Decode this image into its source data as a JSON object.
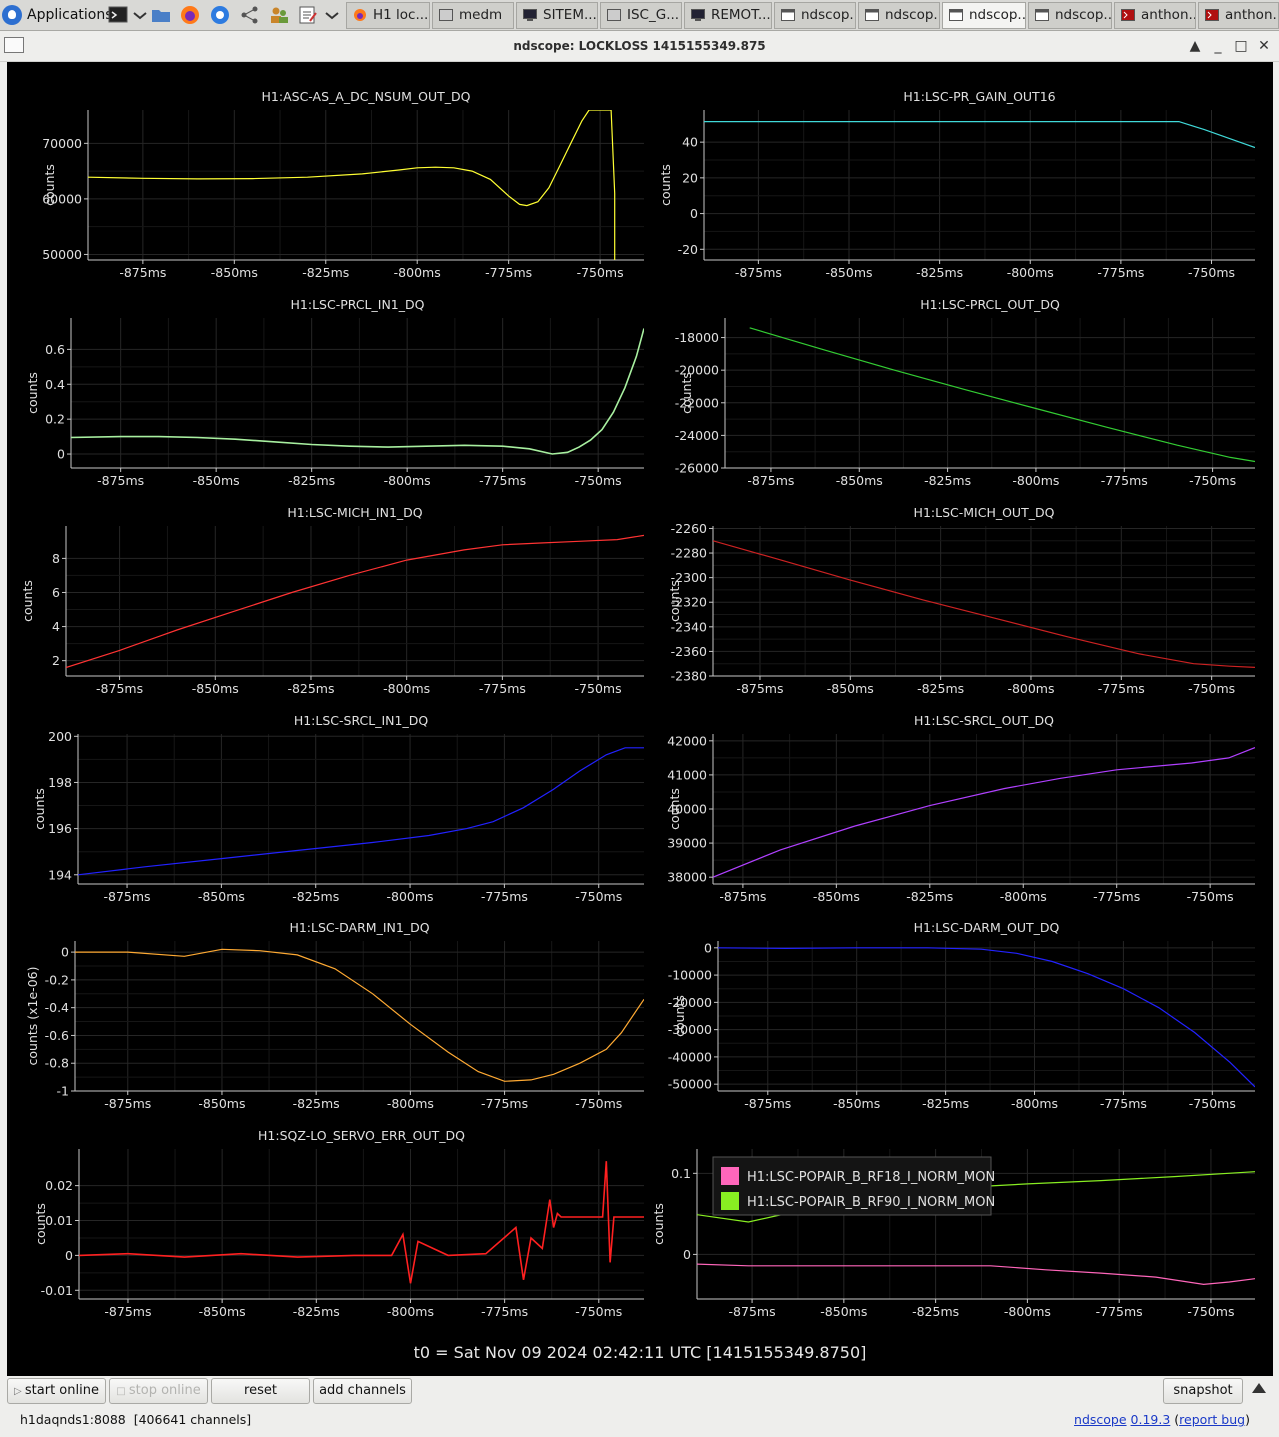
{
  "taskbar": {
    "applications_label": "Applications",
    "tabs": [
      {
        "label": "H1 loc...",
        "icon": "firefox-icon"
      },
      {
        "label": "medm",
        "icon": "window-icon"
      },
      {
        "label": "SITEM...",
        "icon": "monitor-icon"
      },
      {
        "label": "ISC_G...",
        "icon": "window-icon"
      },
      {
        "label": "REMOT...",
        "icon": "monitor-icon"
      },
      {
        "label": "ndscop...",
        "icon": "window-icon"
      },
      {
        "label": "ndscop...",
        "icon": "window-icon"
      },
      {
        "label": "ndscop...",
        "icon": "window-icon"
      },
      {
        "label": "ndscop...",
        "icon": "window-icon"
      },
      {
        "label": "anthon...",
        "icon": "terminal-icon"
      },
      {
        "label": "anthon...",
        "icon": "terminal-icon"
      }
    ]
  },
  "window": {
    "title": "ndscope: LOCKLOSS 1415155349.875",
    "controls": {
      "collapse": "▲",
      "minimize": "_",
      "maximize": "□",
      "close": "✕"
    }
  },
  "colors": {
    "background": "#000000",
    "grid": "#262626",
    "axis": "#c8c8c8",
    "text": "#e0e0e0"
  },
  "chart_data": [
    {
      "type": "line",
      "title": "H1:ASC-AS_A_DC_NSUM_OUT_DQ",
      "ylabel": "counts",
      "color": "#ffff33",
      "xlim": [
        -890,
        -738
      ],
      "ylim": [
        49000,
        76000
      ],
      "yticks": [
        50000,
        60000,
        70000
      ],
      "ytick_labels": [
        "50000",
        "60000",
        "70000"
      ],
      "xticks": [
        -875,
        -850,
        -825,
        -800,
        -775,
        -750
      ],
      "xtick_labels": [
        "-875ms",
        "-850ms",
        "-825ms",
        "-800ms",
        "-775ms",
        "-750ms"
      ],
      "x": [
        -890,
        -875,
        -860,
        -845,
        -830,
        -815,
        -805,
        -800,
        -795,
        -790,
        -785,
        -780,
        -775,
        -772,
        -770,
        -767,
        -764,
        -761,
        -758,
        -755,
        -753,
        -752,
        -751,
        -751,
        -748,
        -747,
        -746,
        -746
      ],
      "y": [
        63900,
        63700,
        63600,
        63650,
        63900,
        64500,
        65200,
        65600,
        65700,
        65600,
        65000,
        63500,
        60500,
        59000,
        58800,
        59500,
        62000,
        66000,
        70000,
        74000,
        76000,
        76000,
        76000,
        76000,
        76000,
        76000,
        61000,
        49000
      ]
    },
    {
      "type": "line",
      "title": "H1:LSC-PR_GAIN_OUT16",
      "ylabel": "counts",
      "color": "#40d9d9",
      "xlim": [
        -890,
        -738
      ],
      "ylim": [
        -26,
        58
      ],
      "yticks": [
        -20,
        0,
        20,
        40
      ],
      "ytick_labels": [
        "-20",
        "0",
        "20",
        "40"
      ],
      "xticks": [
        -875,
        -850,
        -825,
        -800,
        -775,
        -750
      ],
      "xtick_labels": [
        "-875ms",
        "-850ms",
        "-825ms",
        "-800ms",
        "-775ms",
        "-750ms"
      ],
      "x": [
        -890,
        -870,
        -850,
        -830,
        -810,
        -790,
        -770,
        -759,
        -752,
        -745,
        -738
      ],
      "y": [
        51.5,
        51.5,
        51.5,
        51.5,
        51.5,
        51.5,
        51.5,
        51.5,
        47,
        42,
        37
      ]
    },
    {
      "type": "line",
      "title": "H1:LSC-PRCL_IN1_DQ",
      "ylabel": "counts",
      "color": "#a8f0a0",
      "xlim": [
        -888,
        -738
      ],
      "ylim": [
        -0.08,
        0.78
      ],
      "yticks": [
        0,
        0.2,
        0.4,
        0.6
      ],
      "ytick_labels": [
        "0",
        "0.2",
        "0.4",
        "0.6"
      ],
      "xticks": [
        -875,
        -850,
        -825,
        -800,
        -775,
        -750
      ],
      "xtick_labels": [
        "-875ms",
        "-850ms",
        "-825ms",
        "-800ms",
        "-775ms",
        "-750ms"
      ],
      "x": [
        -888,
        -875,
        -865,
        -855,
        -845,
        -835,
        -825,
        -815,
        -805,
        -795,
        -785,
        -775,
        -768,
        -762,
        -758,
        -755,
        -752,
        -749,
        -746,
        -743,
        -740,
        -738
      ],
      "y": [
        0.095,
        0.1,
        0.1,
        0.095,
        0.085,
        0.07,
        0.055,
        0.045,
        0.04,
        0.045,
        0.05,
        0.045,
        0.03,
        0.0,
        0.01,
        0.04,
        0.08,
        0.14,
        0.24,
        0.38,
        0.56,
        0.72
      ]
    },
    {
      "type": "line",
      "title": "H1:LSC-PRCL_OUT_DQ",
      "ylabel": "counts",
      "color": "#33cc33",
      "xlim": [
        -888,
        -738
      ],
      "ylim": [
        -26000,
        -16800
      ],
      "yticks": [
        -26000,
        -24000,
        -22000,
        -20000,
        -18000
      ],
      "ytick_labels": [
        "-26000",
        "-24000",
        "-22000",
        "-20000",
        "-18000"
      ],
      "xticks": [
        -875,
        -850,
        -825,
        -800,
        -775,
        -750
      ],
      "xtick_labels": [
        "-875ms",
        "-850ms",
        "-825ms",
        "-800ms",
        "-775ms",
        "-750ms"
      ],
      "x": [
        -881,
        -860,
        -840,
        -820,
        -800,
        -780,
        -760,
        -745,
        -738
      ],
      "y": [
        -17400,
        -18750,
        -20000,
        -21200,
        -22350,
        -23500,
        -24600,
        -25350,
        -25600
      ]
    },
    {
      "type": "line",
      "title": "H1:LSC-MICH_IN1_DQ",
      "ylabel": "counts",
      "color": "#ff3333",
      "xlim": [
        -889,
        -738
      ],
      "ylim": [
        1.1,
        9.9
      ],
      "yticks": [
        2,
        4,
        6,
        8
      ],
      "ytick_labels": [
        "2",
        "4",
        "6",
        "8"
      ],
      "xticks": [
        -875,
        -850,
        -825,
        -800,
        -775,
        -750
      ],
      "xtick_labels": [
        "-875ms",
        "-850ms",
        "-825ms",
        "-800ms",
        "-775ms",
        "-750ms"
      ],
      "x": [
        -889,
        -875,
        -860,
        -845,
        -830,
        -815,
        -800,
        -785,
        -775,
        -765,
        -755,
        -745,
        -738
      ],
      "y": [
        1.6,
        2.6,
        3.8,
        4.9,
        6.0,
        7.0,
        7.9,
        8.5,
        8.8,
        8.9,
        9.0,
        9.1,
        9.35
      ]
    },
    {
      "type": "line",
      "title": "H1:LSC-MICH_OUT_DQ",
      "ylabel": "counts",
      "color": "#cc2222",
      "xlim": [
        -888,
        -738
      ],
      "ylim": [
        -2380,
        -2258
      ],
      "yticks": [
        -2380,
        -2360,
        -2340,
        -2320,
        -2300,
        -2280,
        -2260
      ],
      "ytick_labels": [
        "-2380",
        "-2360",
        "-2340",
        "-2320",
        "-2300",
        "-2280",
        "-2260"
      ],
      "xticks": [
        -875,
        -850,
        -825,
        -800,
        -775,
        -750
      ],
      "xtick_labels": [
        "-875ms",
        "-850ms",
        "-825ms",
        "-800ms",
        "-775ms",
        "-750ms"
      ],
      "x": [
        -888,
        -870,
        -850,
        -830,
        -810,
        -790,
        -770,
        -755,
        -745,
        -738
      ],
      "y": [
        -2270,
        -2285,
        -2302,
        -2318,
        -2333,
        -2348,
        -2362,
        -2370,
        -2372,
        -2373
      ]
    },
    {
      "type": "line",
      "title": "H1:LSC-SRCL_IN1_DQ",
      "ylabel": "counts",
      "color": "#2222ff",
      "xlim": [
        -888,
        -738
      ],
      "ylim": [
        193.6,
        200.1
      ],
      "yticks": [
        194,
        196,
        198,
        200
      ],
      "ytick_labels": [
        "194",
        "196",
        "198",
        "200"
      ],
      "xticks": [
        -875,
        -850,
        -825,
        -800,
        -775,
        -750
      ],
      "xtick_labels": [
        "-875ms",
        "-850ms",
        "-825ms",
        "-800ms",
        "-775ms",
        "-750ms"
      ],
      "x": [
        -888,
        -870,
        -850,
        -830,
        -810,
        -795,
        -785,
        -778,
        -770,
        -762,
        -755,
        -748,
        -743,
        -738
      ],
      "y": [
        194.0,
        194.35,
        194.7,
        195.05,
        195.4,
        195.7,
        196.0,
        196.3,
        196.9,
        197.7,
        198.5,
        199.2,
        199.5,
        199.5
      ]
    },
    {
      "type": "line",
      "title": "H1:LSC-SRCL_OUT_DQ",
      "ylabel": "counts",
      "color": "#b040ff",
      "xlim": [
        -883,
        -738
      ],
      "ylim": [
        37800,
        42200
      ],
      "yticks": [
        38000,
        39000,
        40000,
        41000,
        42000
      ],
      "ytick_labels": [
        "38000",
        "39000",
        "40000",
        "41000",
        "42000"
      ],
      "xticks": [
        -875,
        -850,
        -825,
        -800,
        -775,
        -750
      ],
      "xtick_labels": [
        "-875ms",
        "-850ms",
        "-825ms",
        "-800ms",
        "-775ms",
        "-750ms"
      ],
      "x": [
        -883,
        -865,
        -845,
        -825,
        -805,
        -790,
        -775,
        -765,
        -755,
        -745,
        -738
      ],
      "y": [
        38000,
        38800,
        39500,
        40100,
        40600,
        40900,
        41150,
        41250,
        41350,
        41500,
        41800
      ]
    },
    {
      "type": "line",
      "title": "H1:LSC-DARM_IN1_DQ",
      "ylabel": "counts (x1e-06)",
      "color": "#ffaa33",
      "xlim": [
        -889,
        -738
      ],
      "ylim": [
        -1.0,
        0.08
      ],
      "yticks": [
        -1,
        -0.8,
        -0.6,
        -0.4,
        -0.2,
        0
      ],
      "ytick_labels": [
        "-1",
        "-0.8",
        "-0.6",
        "-0.4",
        "-0.2",
        "0"
      ],
      "xticks": [
        -875,
        -850,
        -825,
        -800,
        -775,
        -750
      ],
      "xtick_labels": [
        "-875ms",
        "-850ms",
        "-825ms",
        "-800ms",
        "-775ms",
        "-750ms"
      ],
      "x": [
        -889,
        -875,
        -860,
        -850,
        -840,
        -830,
        -820,
        -810,
        -800,
        -790,
        -782,
        -775,
        -768,
        -762,
        -755,
        -748,
        -744,
        -738
      ],
      "y": [
        0.0,
        0.0,
        -0.03,
        0.02,
        0.01,
        -0.02,
        -0.12,
        -0.3,
        -0.52,
        -0.72,
        -0.86,
        -0.93,
        -0.92,
        -0.88,
        -0.8,
        -0.7,
        -0.58,
        -0.34
      ]
    },
    {
      "type": "line",
      "title": "H1:LSC-DARM_OUT_DQ",
      "ylabel": "counts",
      "color": "#2222ff",
      "xlim": [
        -889,
        -738
      ],
      "ylim": [
        -52500,
        2500
      ],
      "yticks": [
        -50000,
        -40000,
        -30000,
        -20000,
        -10000,
        0
      ],
      "ytick_labels": [
        "-50000",
        "-40000",
        "-30000",
        "-20000",
        "-10000",
        "0"
      ],
      "xticks": [
        -875,
        -850,
        -825,
        -800,
        -775,
        -750
      ],
      "xtick_labels": [
        "-875ms",
        "-850ms",
        "-825ms",
        "-800ms",
        "-775ms",
        "-750ms"
      ],
      "x": [
        -889,
        -870,
        -850,
        -830,
        -815,
        -805,
        -795,
        -785,
        -775,
        -765,
        -755,
        -745,
        -738
      ],
      "y": [
        0,
        -200,
        0,
        0,
        -500,
        -2000,
        -5000,
        -9500,
        -15000,
        -22000,
        -31000,
        -42000,
        -51000
      ]
    },
    {
      "type": "line",
      "title": "H1:SQZ-LO_SERVO_ERR_OUT_DQ",
      "ylabel": "counts",
      "color": "#ff2020",
      "xlim": [
        -888,
        -738
      ],
      "ylim": [
        -0.0125,
        0.0305
      ],
      "yticks": [
        -0.01,
        0,
        0.01,
        0.02
      ],
      "ytick_labels": [
        "-0.01",
        "0",
        "0.01",
        "0.02"
      ],
      "xticks": [
        -875,
        -850,
        -825,
        -800,
        -775,
        -750
      ],
      "xtick_labels": [
        "-875ms",
        "-850ms",
        "-825ms",
        "-800ms",
        "-775ms",
        "-750ms"
      ],
      "x": [
        -888,
        -875,
        -860,
        -845,
        -830,
        -815,
        -805,
        -802,
        -800,
        -798,
        -790,
        -780,
        -772,
        -770,
        -768,
        -765,
        -763,
        -762,
        -761,
        -760,
        -758,
        -755,
        -752,
        -749,
        -748,
        -747,
        -746,
        -744,
        -741,
        -738
      ],
      "y": [
        0.0,
        0.0005,
        -0.0005,
        0.0005,
        -0.0005,
        0.0,
        0.0,
        0.006,
        -0.008,
        0.004,
        0.0,
        0.0005,
        0.008,
        -0.007,
        0.005,
        0.002,
        0.016,
        0.008,
        0.012,
        0.011,
        0.011,
        0.011,
        0.011,
        0.011,
        0.027,
        -0.002,
        0.011,
        0.011,
        0.011,
        0.011
      ]
    },
    {
      "type": "line",
      "title": "",
      "ylabel": "counts",
      "legend": "top-left",
      "xlim": [
        -890,
        -738
      ],
      "ylim": [
        -0.055,
        0.13
      ],
      "yticks": [
        0,
        0.1
      ],
      "ytick_labels": [
        "0",
        "0.1"
      ],
      "xticks": [
        -875,
        -850,
        -825,
        -800,
        -775,
        -750
      ],
      "xtick_labels": [
        "-875ms",
        "-850ms",
        "-825ms",
        "-800ms",
        "-775ms",
        "-750ms"
      ],
      "series": [
        {
          "name": "H1:LSC-POPAIR_B_RF18_I_NORM_MON",
          "color": "#ff66bb",
          "x": [
            -890,
            -876,
            -860,
            -840,
            -820,
            -810,
            -795,
            -780,
            -765,
            -752,
            -745,
            -738
          ],
          "y": [
            -0.012,
            -0.014,
            -0.014,
            -0.014,
            -0.014,
            -0.014,
            -0.019,
            -0.023,
            -0.028,
            -0.037,
            -0.034,
            -0.03
          ]
        },
        {
          "name": "H1:LSC-POPAIR_B_RF90_I_NORM_MON",
          "color": "#88ee22",
          "x": [
            -890,
            -876,
            -860,
            -840,
            -820,
            -800,
            -780,
            -760,
            -738
          ],
          "y": [
            0.049,
            0.04,
            0.056,
            0.07,
            0.082,
            0.087,
            0.091,
            0.096,
            0.102
          ]
        }
      ]
    }
  ],
  "footer": {
    "t0_text": "t0 = Sat Nov 09 2024 02:42:11 UTC [1415155349.8750]",
    "buttons": {
      "start_online": "start online",
      "stop_online": "stop online",
      "reset": "reset",
      "add_channels": "add channels",
      "snapshot": "snapshot"
    },
    "status_server": "h1daqnds1:8088",
    "status_channels": "[406641 channels]",
    "app_name": "ndscope",
    "version": "0.19.3",
    "report_bug": "report bug"
  }
}
